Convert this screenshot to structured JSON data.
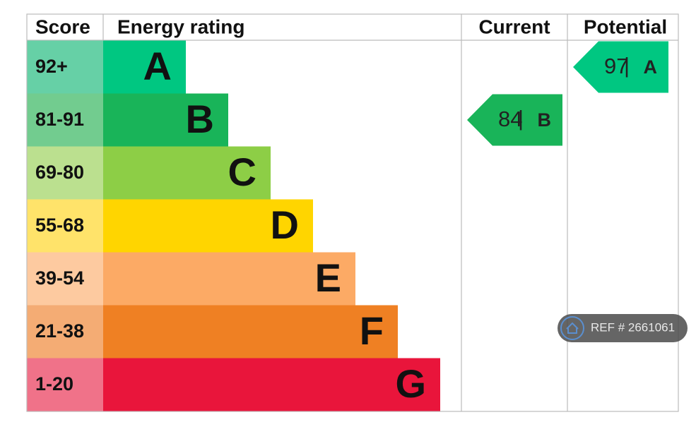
{
  "header": {
    "score": "Score",
    "energy_rating": "Energy rating",
    "current": "Current",
    "potential": "Potential"
  },
  "bands": [
    {
      "score": "92+",
      "letter": "A",
      "color": "#00c781",
      "score_color": "#66d0a6"
    },
    {
      "score": "81-91",
      "letter": "B",
      "color": "#19b459",
      "score_color": "#72cc8f"
    },
    {
      "score": "69-80",
      "letter": "C",
      "color": "#8dce46",
      "score_color": "#bbe08f"
    },
    {
      "score": "55-68",
      "letter": "D",
      "color": "#ffd500",
      "score_color": "#ffe36a"
    },
    {
      "score": "39-54",
      "letter": "E",
      "color": "#fcaa65",
      "score_color": "#fdcaa0"
    },
    {
      "score": "21-38",
      "letter": "F",
      "color": "#ef8023",
      "score_color": "#f4ac74"
    },
    {
      "score": "1-20",
      "letter": "G",
      "color": "#e9153b",
      "score_color": "#f07289"
    }
  ],
  "current": {
    "score": "84",
    "separator": "|",
    "letter": "B"
  },
  "potential": {
    "score": "97",
    "separator": "|",
    "letter": "A"
  },
  "badge": {
    "text": "REF # 2661061"
  }
}
